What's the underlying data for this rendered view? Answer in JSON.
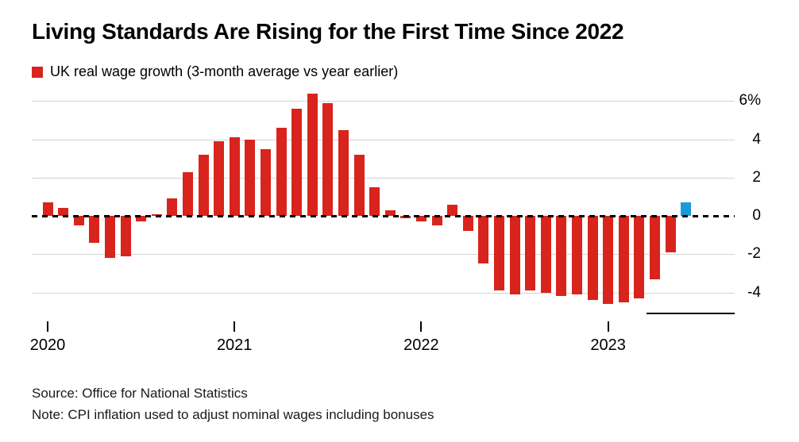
{
  "title": "Living Standards Are Rising for the First Time Since 2022",
  "legend": {
    "label": "UK real wage growth (3-month average vs year earlier)",
    "swatch_color": "#d8241c"
  },
  "colors": {
    "bar_red": "#d8241c",
    "highlight_blue": "#189bd8",
    "grid_gray": "#d4d4d4",
    "axis_black": "#000000",
    "background": "#ffffff"
  },
  "chart_data": {
    "type": "bar",
    "series_name": "UK real wage growth (3-month average vs year earlier)",
    "unit": "%",
    "x": [
      "Jan 2020",
      "Feb 2020",
      "Mar 2020",
      "Apr 2020",
      "May 2020",
      "Jun 2020",
      "Jul 2020",
      "Aug 2020",
      "Sep 2020",
      "Oct 2020",
      "Nov 2020",
      "Dec 2020",
      "Jan 2021",
      "Feb 2021",
      "Mar 2021",
      "Apr 2021",
      "May 2021",
      "Jun 2021",
      "Jul 2021",
      "Aug 2021",
      "Sep 2021",
      "Oct 2021",
      "Nov 2021",
      "Dec 2021",
      "Jan 2022",
      "Feb 2022",
      "Mar 2022",
      "Apr 2022",
      "May 2022",
      "Jun 2022",
      "Jul 2022",
      "Aug 2022",
      "Sep 2022",
      "Oct 2022",
      "Nov 2022",
      "Dec 2022",
      "Jan 2023",
      "Feb 2023",
      "Mar 2023",
      "Apr 2023",
      "May 2023",
      "Jun 2023"
    ],
    "values": [
      0.7,
      0.4,
      -0.5,
      -1.4,
      -2.2,
      -2.1,
      -0.3,
      0.1,
      0.9,
      2.3,
      3.2,
      3.9,
      4.1,
      4.0,
      3.5,
      4.6,
      5.6,
      6.4,
      5.9,
      4.5,
      3.2,
      1.5,
      0.3,
      -0.1,
      -0.3,
      -0.5,
      0.6,
      -0.8,
      -2.5,
      -3.9,
      -4.1,
      -3.9,
      -4.0,
      -4.2,
      -4.1,
      -4.4,
      -4.6,
      -4.5,
      -4.3,
      -3.3,
      -1.9,
      0.7
    ],
    "highlight_index": 41,
    "bar_color": "#d8241c",
    "highlight_color": "#189bd8",
    "ylim": [
      -5.3,
      6.8
    ],
    "yticks": [
      6,
      4,
      2,
      0,
      -2,
      -4
    ],
    "ytick_labels": [
      "6%",
      "4",
      "2",
      "0",
      "-2",
      "-4"
    ],
    "xtick_indices": [
      0,
      12,
      24,
      36
    ],
    "xtick_labels": [
      "2020",
      "2021",
      "2022",
      "2023"
    ],
    "zero_line": {
      "value": 0,
      "style": "dashed",
      "color": "#000000"
    },
    "grid": true,
    "legend_position": "top-left"
  },
  "footer": {
    "source": "Source: Office for National Statistics",
    "note": "Note: CPI inflation used to adjust nominal wages including bonuses"
  }
}
